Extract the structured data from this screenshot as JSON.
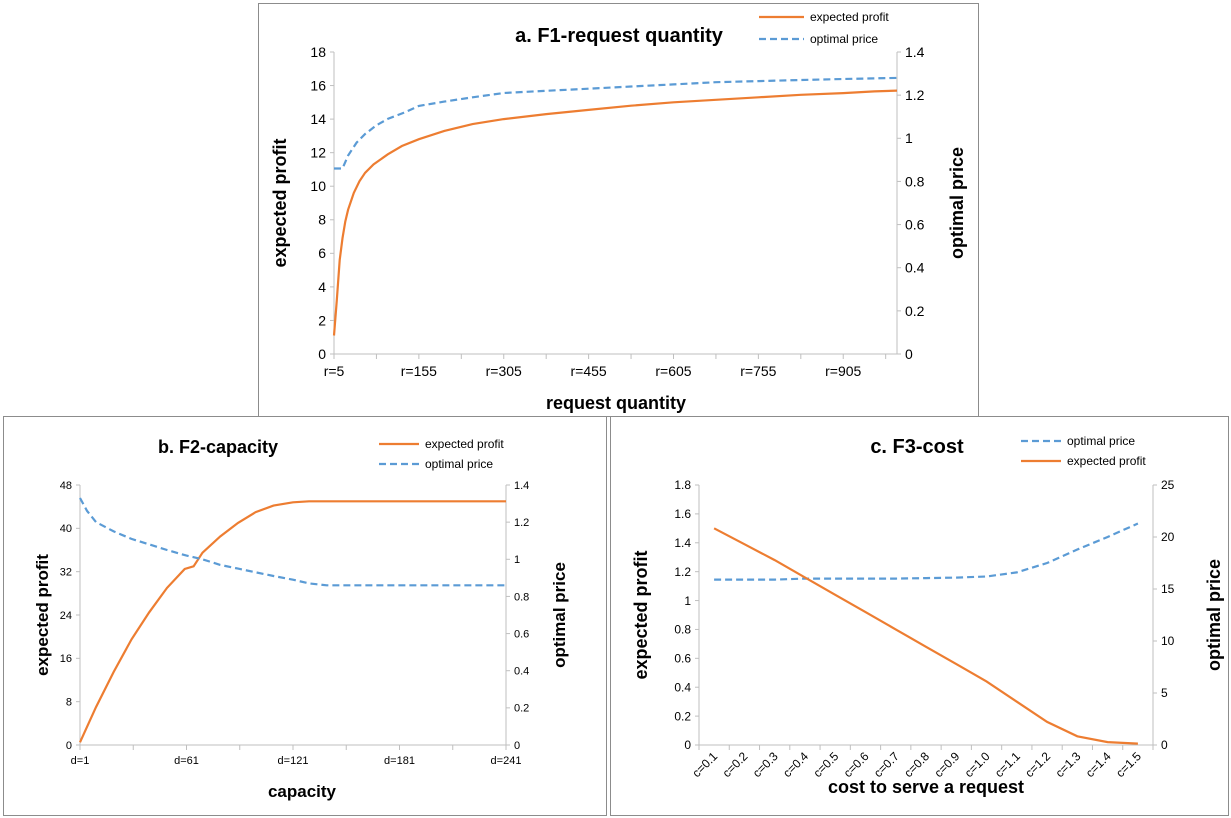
{
  "colors": {
    "profit": "#ed7d31",
    "price": "#5b9bd5",
    "axis": "#bfbfbf",
    "text": "#000000"
  },
  "chart_data": [
    {
      "id": "a",
      "type": "line",
      "title": "a. F1-request quantity",
      "xlabel": "request quantity",
      "ylabel": "expected profit",
      "y2label": "optimal price",
      "x_tick_labels": [
        "r=5",
        "r=155",
        "r=305",
        "r=455",
        "r=605",
        "r=755",
        "r=905"
      ],
      "xlim": [
        5,
        1000
      ],
      "ylim": [
        0,
        18
      ],
      "y_ticks": [
        0,
        2,
        4,
        6,
        8,
        10,
        12,
        14,
        16,
        18
      ],
      "y2lim": [
        0,
        1.4
      ],
      "y2_ticks": [
        "0",
        "0.2",
        "0.4",
        "0.6",
        "0.8",
        "1",
        "1.2",
        "1.4"
      ],
      "legend": [
        "expected profit",
        "optimal price"
      ],
      "legend_position": "top-right",
      "series": [
        {
          "name": "expected profit",
          "axis": "left",
          "style": "solid",
          "x": [
            5,
            10,
            15,
            20,
            25,
            30,
            40,
            50,
            60,
            75,
            100,
            125,
            155,
            200,
            250,
            305,
            380,
            455,
            530,
            605,
            680,
            755,
            830,
            905,
            960,
            1000
          ],
          "y": [
            1.1,
            3.2,
            5.6,
            6.9,
            7.9,
            8.6,
            9.6,
            10.3,
            10.8,
            11.3,
            11.9,
            12.4,
            12.8,
            13.3,
            13.7,
            14.0,
            14.3,
            14.55,
            14.8,
            15.0,
            15.15,
            15.3,
            15.45,
            15.55,
            15.65,
            15.7
          ]
        },
        {
          "name": "optimal price",
          "axis": "right",
          "style": "dashed",
          "x": [
            5,
            20,
            30,
            45,
            60,
            80,
            100,
            130,
            155,
            200,
            250,
            305,
            380,
            455,
            530,
            605,
            680,
            755,
            830,
            905,
            1000
          ],
          "y": [
            0.86,
            0.86,
            0.92,
            0.98,
            1.02,
            1.06,
            1.09,
            1.12,
            1.15,
            1.17,
            1.19,
            1.21,
            1.22,
            1.23,
            1.24,
            1.25,
            1.26,
            1.265,
            1.27,
            1.275,
            1.28
          ]
        }
      ]
    },
    {
      "id": "b",
      "type": "line",
      "title": "b. F2-capacity",
      "xlabel": "capacity",
      "ylabel": "expected profit",
      "y2label": "optimal price",
      "x_tick_labels": [
        "d=1",
        "d=61",
        "d=121",
        "d=181",
        "d=241"
      ],
      "xlim": [
        1,
        241
      ],
      "ylim": [
        0,
        48
      ],
      "y_ticks": [
        0,
        8,
        16,
        24,
        32,
        40,
        48
      ],
      "y2lim": [
        0,
        1.4
      ],
      "y2_ticks": [
        "0",
        "0.2",
        "0.4",
        "0.6",
        "0.8",
        "1",
        "1.2",
        "1.4"
      ],
      "legend": [
        "expected profit",
        "optimal price"
      ],
      "legend_position": "top-right",
      "series": [
        {
          "name": "expected profit",
          "axis": "left",
          "style": "solid",
          "x": [
            1,
            10,
            20,
            30,
            40,
            50,
            60,
            65,
            70,
            80,
            90,
            100,
            110,
            121,
            130,
            140,
            160,
            181,
            200,
            241
          ],
          "y": [
            0.5,
            7,
            13.5,
            19.5,
            24.5,
            29,
            32.5,
            33,
            35.5,
            38.5,
            41,
            43,
            44.2,
            44.8,
            45,
            45,
            45,
            45,
            45,
            45
          ]
        },
        {
          "name": "optimal price",
          "axis": "right",
          "style": "dashed",
          "x": [
            1,
            5,
            10,
            20,
            30,
            40,
            50,
            61,
            70,
            80,
            90,
            100,
            110,
            121,
            130,
            140,
            181,
            241
          ],
          "y": [
            1.33,
            1.26,
            1.2,
            1.15,
            1.11,
            1.08,
            1.05,
            1.02,
            1.0,
            0.97,
            0.95,
            0.93,
            0.91,
            0.89,
            0.87,
            0.86,
            0.86,
            0.86
          ]
        }
      ]
    },
    {
      "id": "c",
      "type": "line",
      "title": "c. F3-cost",
      "xlabel": "cost to serve a request",
      "ylabel": "expected profit",
      "y2label": "optimal price",
      "categories": [
        "c=0.1",
        "c=0.2",
        "c=0.3",
        "c=0.4",
        "c=0.5",
        "c=0.6",
        "c=0.7",
        "c=0.8",
        "c=0.9",
        "c=1.0",
        "c=1.1",
        "c=1.2",
        "c=1.3",
        "c=1.4",
        "c=1.5"
      ],
      "ylim": [
        0,
        1.8
      ],
      "y_ticks": [
        "0",
        "0.2",
        "0.4",
        "0.6",
        "0.8",
        "1",
        "1.2",
        "1.4",
        "1.6",
        "1.8"
      ],
      "y2lim": [
        0,
        25
      ],
      "y2_ticks": [
        "0",
        "5",
        "10",
        "15",
        "20",
        "25"
      ],
      "legend": [
        "optimal price",
        "expected profit"
      ],
      "legend_position": "top-right",
      "series": [
        {
          "name": "optimal price",
          "axis": "right",
          "style": "dashed",
          "values": [
            15.9,
            15.9,
            15.9,
            16.0,
            16.0,
            16.0,
            16.0,
            16.05,
            16.1,
            16.2,
            16.6,
            17.5,
            18.8,
            20.0,
            21.3
          ]
        },
        {
          "name": "expected profit",
          "axis": "left",
          "style": "solid",
          "values": [
            1.5,
            1.39,
            1.28,
            1.16,
            1.04,
            0.92,
            0.8,
            0.68,
            0.56,
            0.44,
            0.3,
            0.16,
            0.06,
            0.02,
            0.01
          ]
        }
      ]
    }
  ]
}
